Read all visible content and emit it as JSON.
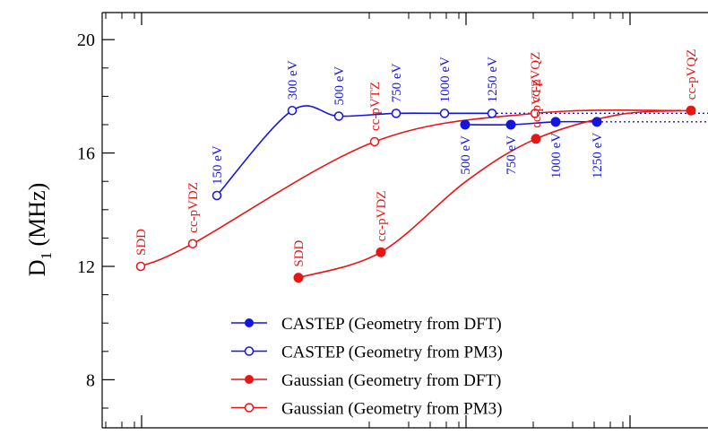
{
  "chart_data": {
    "type": "line",
    "title": "",
    "xlabel": "",
    "ylabel": "D",
    "ylabel_sub": "1",
    "ylabel_unit": " (MHz)",
    "ylim": [
      7,
      21
    ],
    "yticks": [
      8,
      12,
      16,
      20
    ],
    "ytick_labels": [
      "8",
      "12",
      "16",
      "20"
    ],
    "x_ticks_labeled": false,
    "grid": false,
    "legend_position": "bottom-center",
    "colors": {
      "castep": "#1515e0",
      "gaussian": "#e81515"
    },
    "series": [
      {
        "name": "CASTEP (Geometry from DFT)",
        "color": "#1515e0",
        "marker": "filled",
        "x": [
          500,
          750,
          1000,
          1250
        ],
        "y": [
          17.0,
          17.0,
          17.1,
          17.1
        ],
        "point_labels": [
          "500 eV",
          "750 eV",
          "1000 eV",
          "1250 eV"
        ],
        "asymptote": 17.1
      },
      {
        "name": "CASTEP (Geometry from PM3)",
        "color": "#1515e0",
        "marker": "open",
        "x": [
          150,
          300,
          500,
          750,
          1000,
          1250
        ],
        "y": [
          14.5,
          17.5,
          17.3,
          17.4,
          17.4,
          17.4
        ],
        "point_labels": [
          "150 eV",
          "300 eV",
          "500 eV",
          "750 eV",
          "1000 eV",
          "1250 eV"
        ],
        "asymptote": 17.4
      },
      {
        "name": "Gaussian (Geometry from DFT)",
        "color": "#e81515",
        "marker": "filled",
        "x": [
          "SDD",
          "cc-pVDZ",
          "cc-pVTZ",
          "cc-pVQZ"
        ],
        "y": [
          11.6,
          12.5,
          16.5,
          17.5
        ],
        "point_labels": [
          "SDD",
          "cc-pVDZ",
          "cc-pVTZ",
          "cc-pVQZ"
        ]
      },
      {
        "name": "Gaussian (Geometry from PM3)",
        "color": "#e81515",
        "marker": "open",
        "x": [
          "SDD",
          "cc-pVDZ",
          "cc-pVTZ",
          "cc-pVQZ"
        ],
        "y": [
          12.0,
          12.8,
          16.4,
          17.4
        ],
        "point_labels": [
          "SDD",
          "cc-pVDZ",
          "cc-pVTZ",
          "cc-pVQZ"
        ]
      }
    ]
  }
}
